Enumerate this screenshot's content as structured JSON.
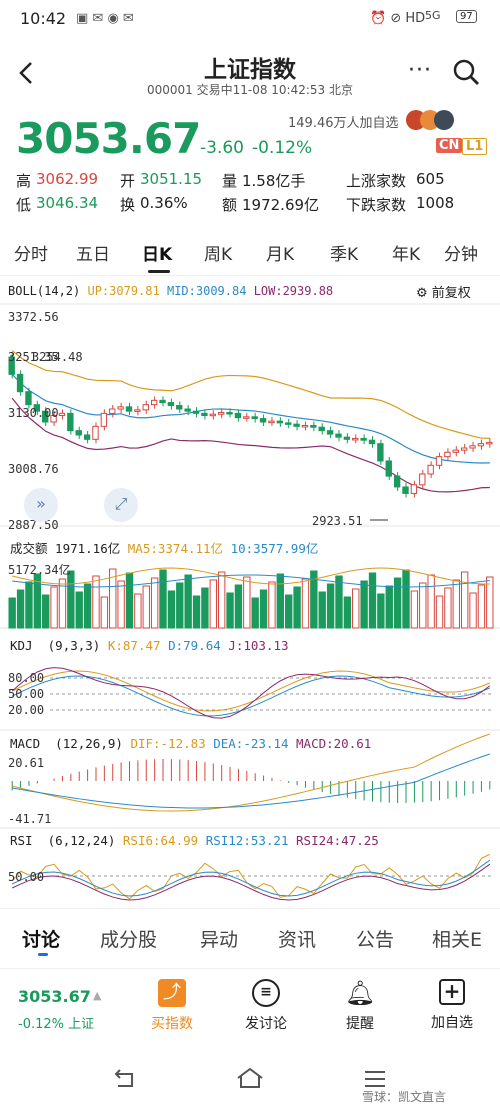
{
  "status_bar": {
    "time": "10:42",
    "battery": "97",
    "net": "5G"
  },
  "header": {
    "title": "上证指数",
    "subtitle": "000001 交易中11-08 10:42:53 北京"
  },
  "quote": {
    "price": "3053.67",
    "change": "-3.60",
    "pct": "-0.12%",
    "followers": "149.46万人加自选",
    "badge_cn": "CN",
    "badge_l1": "L1",
    "rows": [
      [
        {
          "k": "高",
          "v": "3062.99",
          "c": "#d9463e"
        },
        {
          "k": "开",
          "v": "3051.15",
          "c": "#1a9a5c"
        },
        {
          "k": "量",
          "v": "1.58亿手",
          "c": "#222"
        },
        {
          "k": "上涨家数",
          "v": "605",
          "c": "#222"
        }
      ],
      [
        {
          "k": "低",
          "v": "3046.34",
          "c": "#1a9a5c"
        },
        {
          "k": "换",
          "v": "0.36%",
          "c": "#222"
        },
        {
          "k": "额",
          "v": "1972.69亿",
          "c": "#222"
        },
        {
          "k": "下跌家数",
          "v": "1008",
          "c": "#222"
        }
      ]
    ]
  },
  "period_tabs": [
    "分时",
    "五日",
    "日K",
    "周K",
    "月K",
    "季K",
    "年K",
    "分钟"
  ],
  "boll": {
    "name": "BOLL(14,2)",
    "up": "UP:3079.81",
    "mid": "MID:3009.84",
    "low": "LOW:2939.88",
    "restore": "前复权",
    "y_labels": [
      "3372.56",
      "3251.35",
      "3130.00",
      "3008.76",
      "2887.50"
    ],
    "hi_note": "3254.48",
    "lo_note": "2923.51"
  },
  "volume": {
    "title": "成交额",
    "value": "1971.16亿",
    "ma5": "MA5:3374.11亿",
    "ma10": "10:3577.99亿",
    "max": "5172.34亿"
  },
  "kdj": {
    "name": "KDJ",
    "param": "(9,3,3)",
    "k": "K:87.47",
    "d": "D:79.64",
    "j": "J:103.13",
    "levels": [
      "80.00",
      "50.00",
      "20.00"
    ]
  },
  "macd": {
    "name": "MACD",
    "param": "(12,26,9)",
    "dif": "DIF:-12.83",
    "dea": "DEA:-23.14",
    "macd": "MACD:20.61",
    "top": "20.61",
    "bot": "-41.71"
  },
  "rsi": {
    "name": "RSI",
    "param": "(6,12,24)",
    "r6": "RSI6:64.99",
    "r12": "RSI12:53.21",
    "r24": "RSI24:47.25",
    "level": "50.00"
  },
  "content_tabs": [
    "讨论",
    "成分股",
    "异动",
    "资讯",
    "公告",
    "相关E"
  ],
  "bottom": {
    "price": "3053.67",
    "pct": "-0.12% 上证",
    "buttons": [
      {
        "label": "买指数",
        "icon": "trend-icon"
      },
      {
        "label": "发讨论",
        "icon": "chat-icon"
      },
      {
        "label": "提醒",
        "icon": "bell-icon"
      },
      {
        "label": "加自选",
        "icon": "plus-box-icon"
      }
    ]
  },
  "watermark": "雪球：凯文直言",
  "colors": {
    "up": "#d9463e",
    "down": "#1a9a5c",
    "boll_up": "#d99a1c",
    "boll_mid": "#2a8bc7",
    "boll_low": "#8b2a6b"
  },
  "chart_data": {
    "type": "candlestick",
    "closes": [
      3210,
      3170,
      3140,
      3125,
      3100,
      3115,
      3120,
      3080,
      3070,
      3060,
      3090,
      3120,
      3130,
      3135,
      3125,
      3128,
      3140,
      3150,
      3145,
      3138,
      3130,
      3125,
      3120,
      3115,
      3118,
      3122,
      3120,
      3110,
      3112,
      3108,
      3100,
      3102,
      3098,
      3095,
      3090,
      3092,
      3088,
      3080,
      3072,
      3065,
      3060,
      3062,
      3058,
      3050,
      3010,
      2975,
      2950,
      2935,
      2955,
      2980,
      3000,
      3020,
      3030,
      3035,
      3040,
      3045,
      3050,
      3053
    ]
  }
}
